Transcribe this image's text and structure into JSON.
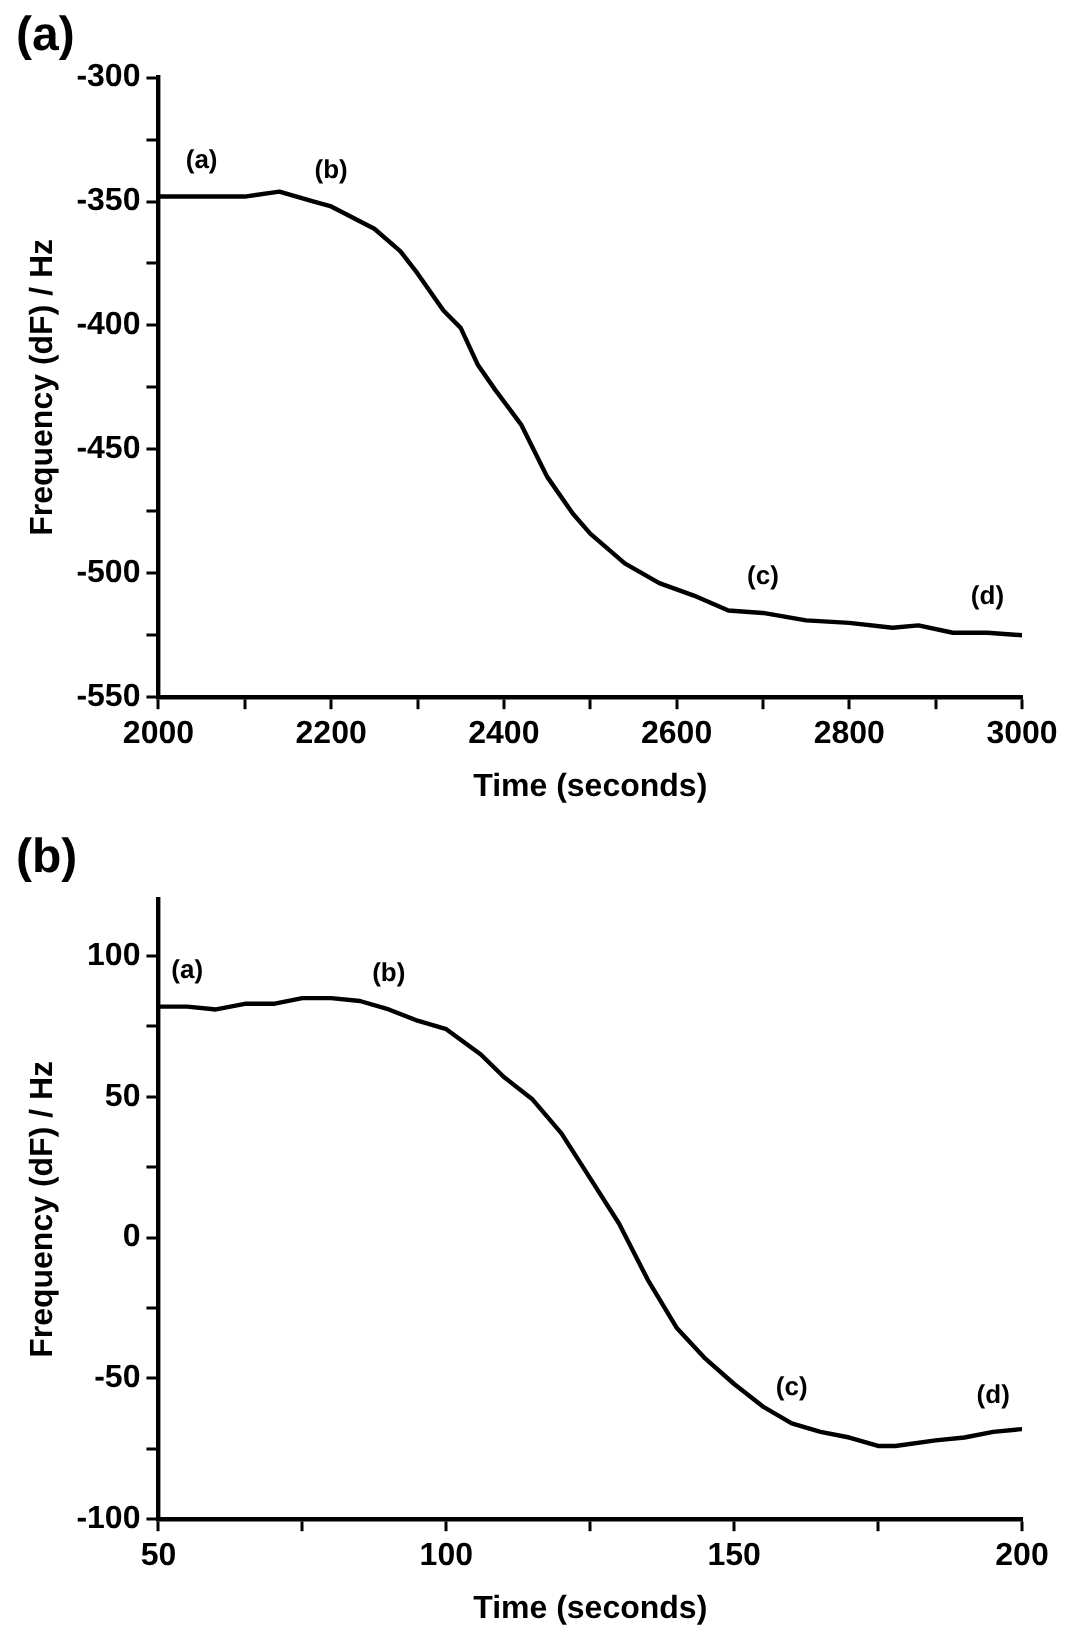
{
  "chart_data": [
    {
      "type": "line",
      "title": "(a)",
      "xlabel": "Time (seconds)",
      "ylabel": "Frequency (dF) / Hz",
      "x": [
        2000,
        2050,
        2100,
        2140,
        2180,
        2200,
        2250,
        2280,
        2300,
        2330,
        2350,
        2370,
        2390,
        2420,
        2450,
        2480,
        2500,
        2540,
        2580,
        2620,
        2660,
        2700,
        2750,
        2800,
        2850,
        2880,
        2920,
        2960,
        3000
      ],
      "series": [
        {
          "color": "#000000",
          "values": [
            -348,
            -348,
            -348,
            -346,
            -350,
            -352,
            -361,
            -370,
            -379,
            -394,
            -401,
            -416,
            -426,
            -440,
            -461,
            -476,
            -484,
            -496,
            -504,
            -509,
            -515,
            -516,
            -519,
            -520,
            -522,
            -521,
            -524,
            -524,
            -525
          ]
        }
      ],
      "xlim": [
        2000,
        3000
      ],
      "xticks": [
        2000,
        {
          "value": 2100,
          "label": null
        },
        2200,
        {
          "value": 2300,
          "label": null
        },
        2400,
        {
          "value": 2500,
          "label": null
        },
        2600,
        {
          "value": 2700,
          "label": null
        },
        2800,
        {
          "value": 2900,
          "label": null
        },
        3000
      ],
      "ylim": [
        -550,
        -300
      ],
      "yticks": [
        -550,
        {
          "value": -525,
          "label": null
        },
        -500,
        {
          "value": -475,
          "label": null
        },
        -450,
        {
          "value": -425,
          "label": null
        },
        -400,
        {
          "value": -375,
          "label": null
        },
        -350,
        {
          "value": -325,
          "label": null
        },
        -300
      ],
      "grid": false,
      "legend": false,
      "marker": "none",
      "line_style": "solid",
      "annotations": [
        {
          "text": "(a)",
          "x": 2050,
          "y": -348
        },
        {
          "text": "(b)",
          "x": 2200,
          "y": -352
        },
        {
          "text": "(c)",
          "x": 2700,
          "y": -516
        },
        {
          "text": "(d)",
          "x": 2960,
          "y": -524
        }
      ]
    },
    {
      "type": "line",
      "title": "(b)",
      "xlabel": "Time (seconds)",
      "ylabel": "Frequency (dF) / Hz",
      "x": [
        50,
        55,
        60,
        65,
        70,
        75,
        80,
        85,
        90,
        95,
        100,
        106,
        110,
        115,
        120,
        125,
        130,
        135,
        140,
        145,
        150,
        155,
        160,
        165,
        170,
        175,
        178,
        185,
        190,
        195,
        200
      ],
      "series": [
        {
          "color": "#000000",
          "values": [
            82,
            82,
            81,
            83,
            83,
            85,
            85,
            84,
            81,
            77,
            74,
            65,
            57,
            49,
            37,
            21,
            5,
            -15,
            -32,
            -43,
            -52,
            -60,
            -66,
            -69,
            -71,
            -74,
            -74,
            -72,
            -71,
            -69,
            -68
          ]
        }
      ],
      "xlim": [
        50,
        200
      ],
      "xticks": [
        50,
        {
          "value": 75,
          "label": null
        },
        100,
        {
          "value": 125,
          "label": null
        },
        150,
        {
          "value": 175,
          "label": null
        },
        200
      ],
      "ylim": [
        -100,
        120
      ],
      "yticks": [
        -100,
        {
          "value": -75,
          "label": null
        },
        -50,
        {
          "value": -25,
          "label": null
        },
        0,
        {
          "value": 25,
          "label": null
        },
        50,
        {
          "value": 75,
          "label": null
        },
        100
      ],
      "grid": false,
      "legend": false,
      "marker": "none",
      "line_style": "solid",
      "annotations": [
        {
          "text": "(a)",
          "x": 55,
          "y": 82
        },
        {
          "text": "(b)",
          "x": 90,
          "y": 81
        },
        {
          "text": "(c)",
          "x": 160,
          "y": -66
        },
        {
          "text": "(d)",
          "x": 195,
          "y": -69
        }
      ]
    }
  ]
}
